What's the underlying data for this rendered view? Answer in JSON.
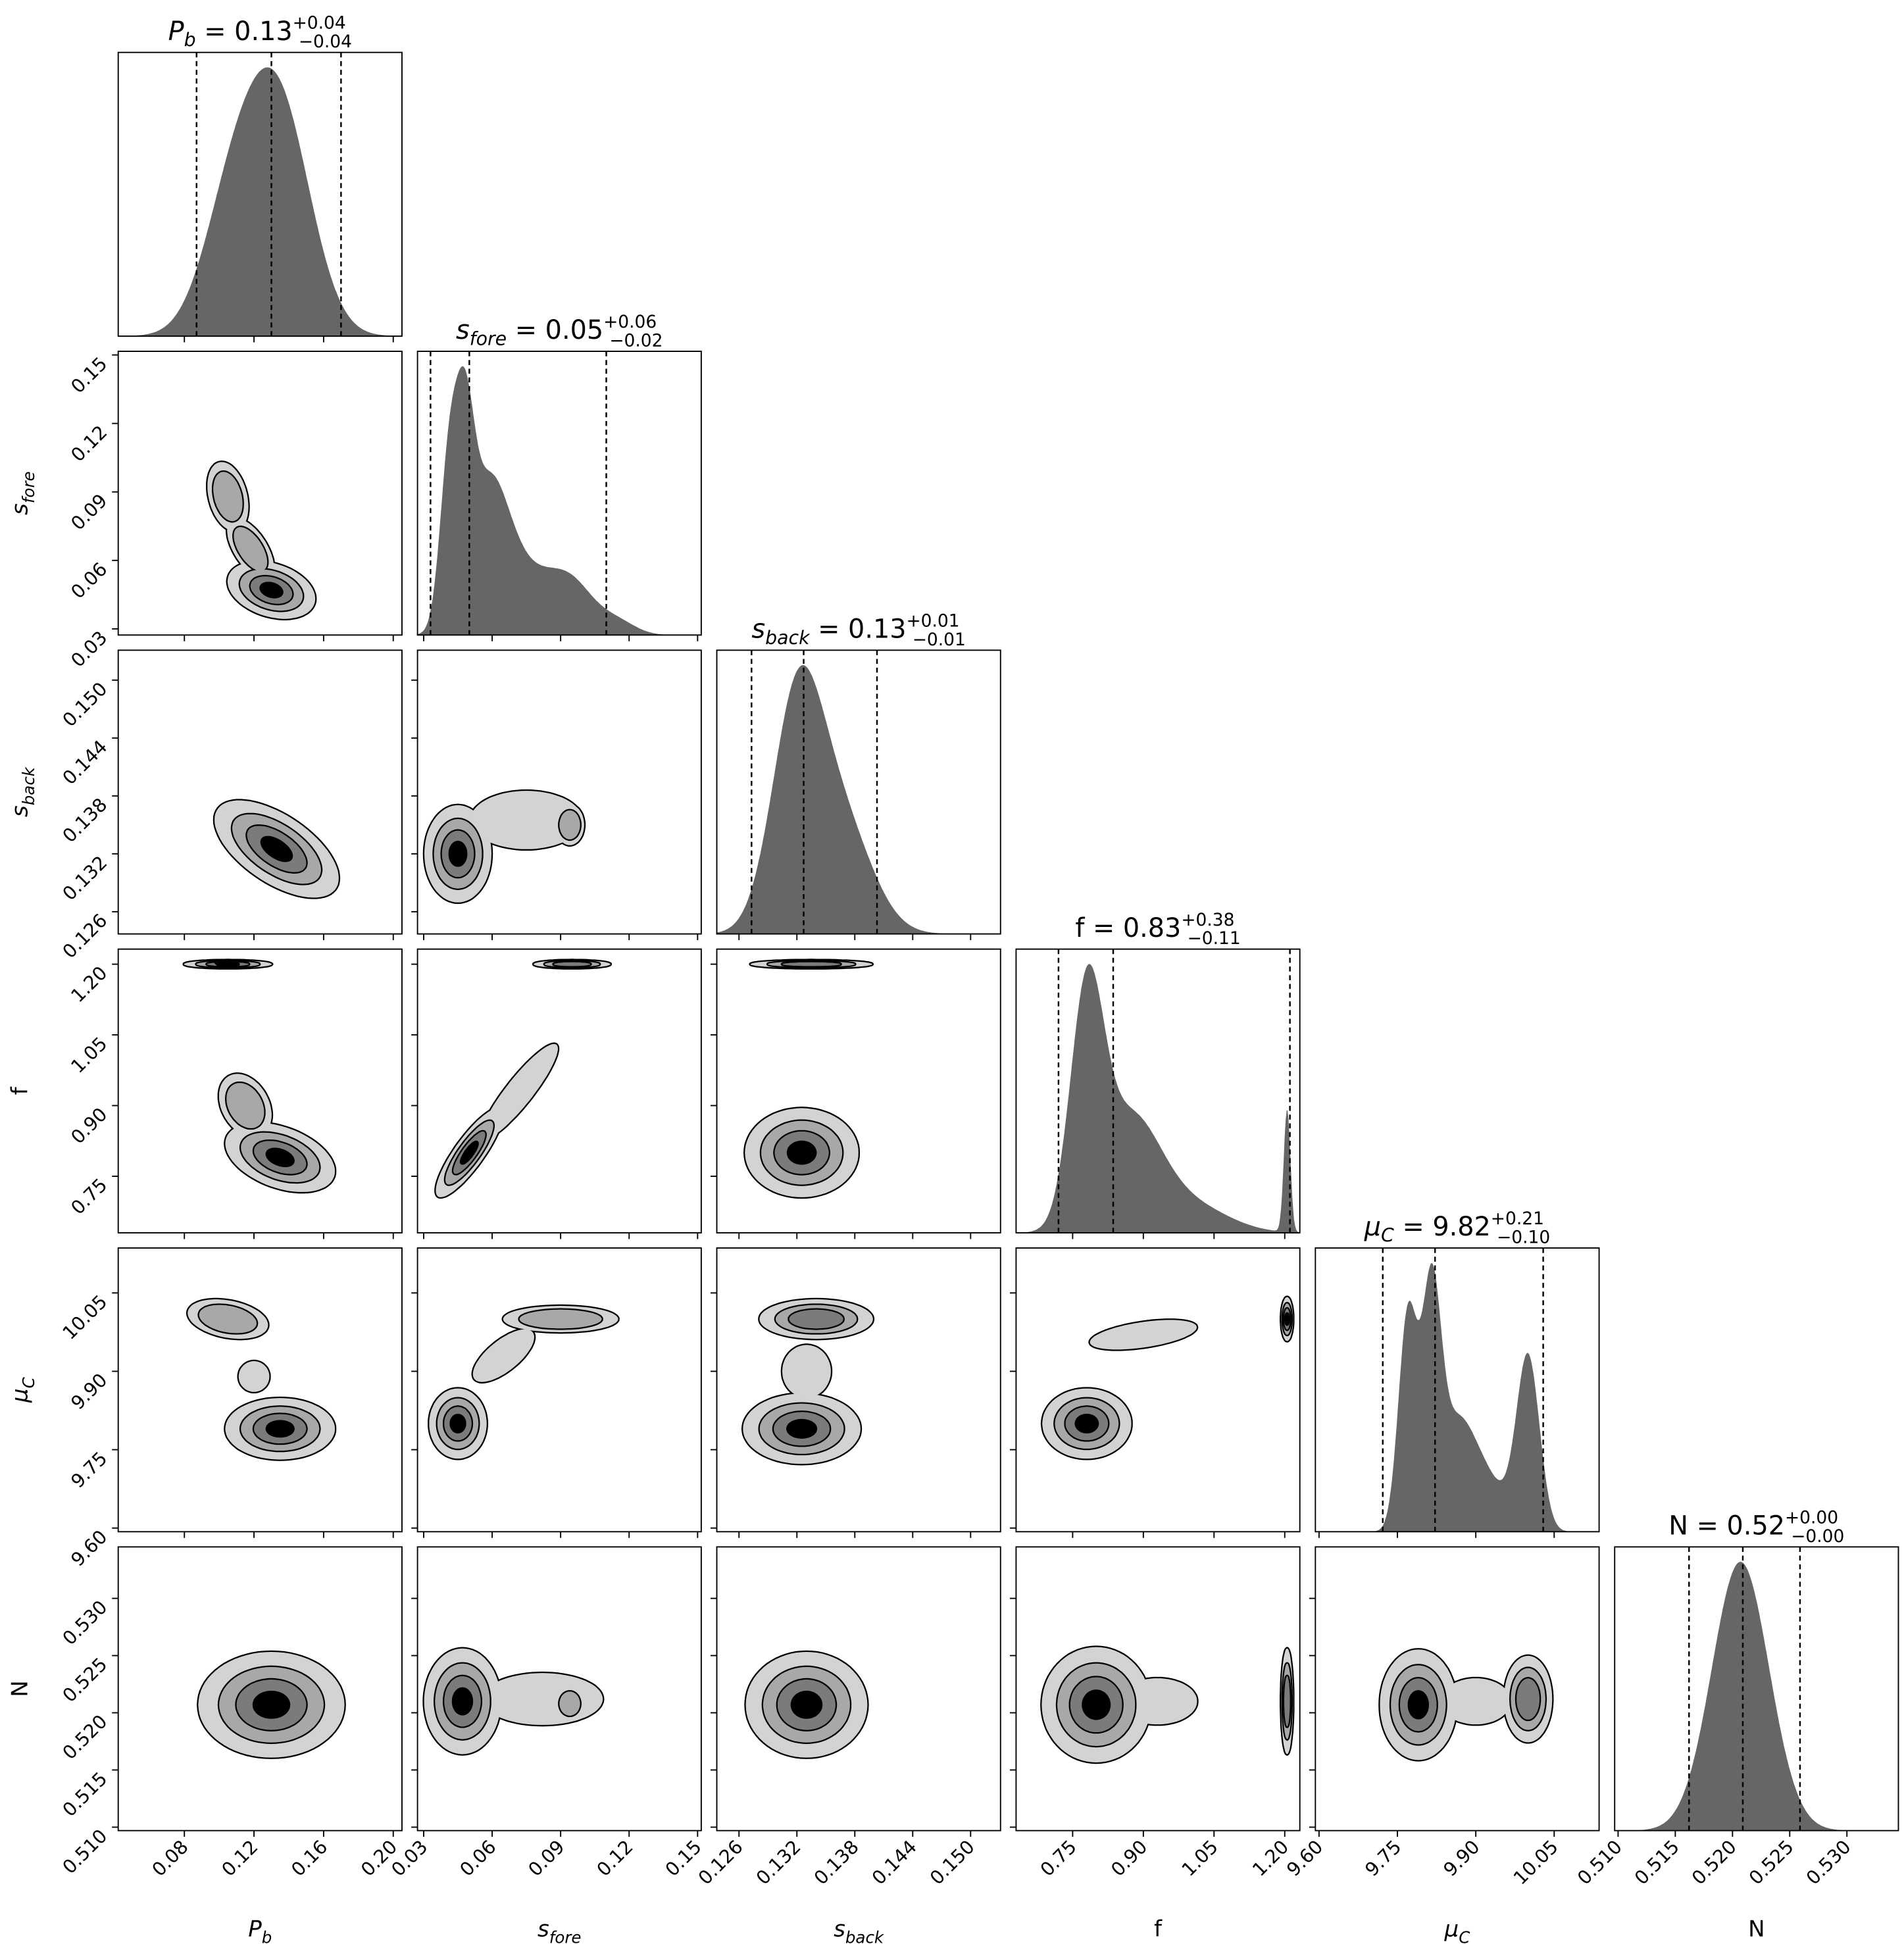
{
  "chart_data": {
    "type": "corner",
    "title": "",
    "parameters": [
      {
        "key": "Pb",
        "label": "P",
        "sub": "b",
        "range": [
          0.042,
          0.205
        ],
        "ticks": [
          "0.08",
          "0.12",
          "0.16",
          "0.20"
        ],
        "title": {
          "value": "0.13",
          "plus": "+0.04",
          "minus": "−0.04"
        },
        "quantiles": [
          0.087,
          0.13,
          0.17
        ],
        "marginal": [
          [
            0.135,
            0.018,
            1
          ],
          [
            0.108,
            0.017,
            0.6
          ]
        ]
      },
      {
        "key": "sfore",
        "label": "s",
        "sub": "fore",
        "range": [
          0.0273,
          0.1516
        ],
        "ticks": [
          "0.03",
          "0.06",
          "0.09",
          "0.12",
          "0.15"
        ],
        "title": {
          "value": "0.05",
          "plus": "+0.06",
          "minus": "−0.02"
        },
        "quantiles": [
          0.033,
          0.05,
          0.11
        ],
        "marginal": [
          [
            0.041,
            0.004,
            1
          ],
          [
            0.048,
            0.004,
            1
          ],
          [
            0.058,
            0.009,
            0.9
          ],
          [
            0.075,
            0.012,
            0.35
          ],
          [
            0.095,
            0.01,
            0.3
          ],
          [
            0.115,
            0.008,
            0.08
          ]
        ]
      },
      {
        "key": "sback",
        "label": "s",
        "sub": "back",
        "range": [
          0.1237,
          0.1531
        ],
        "ticks": [
          "0.126",
          "0.132",
          "0.138",
          "0.144",
          "0.150"
        ],
        "title": {
          "value": "0.13",
          "plus": "+0.01",
          "minus": "−0.01"
        },
        "quantiles": [
          0.1273,
          0.1327,
          0.1403
        ],
        "marginal": [
          [
            0.132,
            0.0026,
            1
          ],
          [
            0.1365,
            0.0032,
            0.5
          ]
        ]
      },
      {
        "key": "f",
        "label": "f",
        "sub": "",
        "range": [
          0.63,
          1.232
        ],
        "ticks": [
          "0.75",
          "0.90",
          "1.05",
          "1.20"
        ],
        "title": {
          "value": "0.83",
          "plus": "+0.38",
          "minus": "−0.11"
        },
        "quantiles": [
          0.72,
          0.836,
          1.211
        ],
        "marginal": [
          [
            0.78,
            0.035,
            1
          ],
          [
            0.87,
            0.065,
            0.5
          ],
          [
            1.0,
            0.08,
            0.12
          ],
          [
            1.205,
            0.007,
            0.55
          ]
        ]
      },
      {
        "key": "muC",
        "label": "μ",
        "sub": "C",
        "range": [
          9.593,
          10.136
        ],
        "ticks": [
          "9.60",
          "9.75",
          "9.90",
          "10.05"
        ],
        "title": {
          "value": "9.82",
          "plus": "+0.21",
          "minus": "−0.10"
        },
        "quantiles": [
          9.722,
          9.822,
          10.029
        ],
        "marginal": [
          [
            9.77,
            0.018,
            1
          ],
          [
            9.815,
            0.018,
            1
          ],
          [
            9.86,
            0.035,
            0.45
          ],
          [
            9.92,
            0.04,
            0.22
          ],
          [
            10.0,
            0.022,
            0.8
          ]
        ]
      },
      {
        "key": "N",
        "label": "N",
        "sub": "",
        "range": [
          0.5097,
          0.5345
        ],
        "ticks": [
          "0.510",
          "0.515",
          "0.520",
          "0.525",
          "0.530"
        ],
        "title": {
          "value": "0.52",
          "plus": "+0.00",
          "minus": "−0.00"
        },
        "quantiles": [
          0.5162,
          0.5209,
          0.5259
        ],
        "marginal": [
          [
            0.5207,
            0.0025,
            1
          ]
        ]
      }
    ],
    "tick_values": [
      [
        0.08,
        0.12,
        0.16,
        0.2
      ],
      [
        0.03,
        0.06,
        0.09,
        0.12,
        0.15
      ],
      [
        0.126,
        0.132,
        0.138,
        0.144,
        0.15
      ],
      [
        0.75,
        0.9,
        1.05,
        1.2
      ],
      [
        9.6,
        9.75,
        9.9,
        10.05
      ],
      [
        0.51,
        0.515,
        0.52,
        0.525,
        0.53
      ]
    ],
    "joint_blobs_note": "blob = [x_mean, y_mean, x_sd, y_sd, correlation, weight, contour_levels]",
    "joint": {
      "1-0": [
        [
          0.13,
          0.047,
          0.012,
          0.006,
          -0.3,
          1,
          4
        ],
        [
          0.118,
          0.065,
          0.008,
          0.008,
          -0.6,
          0.8,
          2
        ],
        [
          0.105,
          0.088,
          0.007,
          0.009,
          -0.3,
          0.8,
          2
        ]
      ],
      "2-0": [
        [
          0.133,
          0.1325,
          0.017,
          0.0024,
          -0.6,
          1,
          4
        ]
      ],
      "3-0": [
        [
          0.105,
          1.2,
          0.012,
          0.004,
          0,
          1,
          4
        ],
        [
          0.135,
          0.79,
          0.015,
          0.035,
          -0.4,
          1,
          4
        ],
        [
          0.115,
          0.9,
          0.009,
          0.04,
          -0.3,
          0.8,
          2
        ]
      ],
      "4-0": [
        [
          0.105,
          10.0,
          0.011,
          0.018,
          -0.3,
          1,
          2
        ],
        [
          0.135,
          9.79,
          0.015,
          0.028,
          0,
          1,
          4
        ],
        [
          0.12,
          9.89,
          0.006,
          0.02,
          0,
          0.7,
          1
        ]
      ],
      "5-0": [
        [
          0.13,
          0.5207,
          0.02,
          0.0022,
          0,
          1,
          4
        ]
      ],
      "2-1": [
        [
          0.045,
          0.132,
          0.007,
          0.0024,
          0,
          1,
          4
        ],
        [
          0.075,
          0.1355,
          0.013,
          0.0016,
          0,
          0.9,
          1
        ],
        [
          0.094,
          0.135,
          0.003,
          0.001,
          0,
          1,
          2
        ]
      ],
      "3-1": [
        [
          0.095,
          1.2,
          0.008,
          0.004,
          0,
          1,
          3
        ],
        [
          0.05,
          0.8,
          0.007,
          0.045,
          0.85,
          1,
          4
        ],
        [
          0.072,
          0.93,
          0.01,
          0.06,
          0.9,
          0.8,
          1
        ]
      ],
      "4-1": [
        [
          0.045,
          9.8,
          0.006,
          0.032,
          0,
          1,
          4
        ],
        [
          0.09,
          10.0,
          0.012,
          0.012,
          0,
          1,
          2
        ],
        [
          0.065,
          9.93,
          0.008,
          0.03,
          0.7,
          0.8,
          1
        ]
      ],
      "5-1": [
        [
          0.047,
          0.521,
          0.008,
          0.0022,
          0,
          1,
          4
        ],
        [
          0.082,
          0.5212,
          0.014,
          0.0012,
          0,
          0.9,
          1
        ],
        [
          0.094,
          0.5208,
          0.003,
          0.0007,
          0,
          1,
          2
        ]
      ],
      "3-2": [
        [
          0.1335,
          1.2,
          0.003,
          0.004,
          0,
          1,
          3
        ],
        [
          0.1325,
          0.8,
          0.0028,
          0.045,
          0,
          1,
          4
        ]
      ],
      "4-2": [
        [
          0.134,
          10.0,
          0.0028,
          0.018,
          0,
          1,
          3
        ],
        [
          0.1325,
          9.79,
          0.0029,
          0.032,
          0,
          1,
          4
        ],
        [
          0.133,
          9.9,
          0.0015,
          0.03,
          0,
          0.8,
          1
        ]
      ],
      "5-2": [
        [
          0.133,
          0.5207,
          0.003,
          0.0022,
          0,
          1,
          4
        ]
      ],
      "4-3": [
        [
          0.78,
          9.8,
          0.045,
          0.032,
          0,
          1,
          4
        ],
        [
          0.9,
          9.97,
          0.06,
          0.015,
          0.5,
          0.9,
          1
        ],
        [
          1.205,
          10.0,
          0.006,
          0.02,
          0,
          1,
          4
        ]
      ],
      "5-3": [
        [
          0.8,
          0.5207,
          0.055,
          0.0024,
          0,
          1,
          4
        ],
        [
          0.93,
          0.521,
          0.05,
          0.0012,
          0,
          0.8,
          1
        ],
        [
          1.205,
          0.521,
          0.006,
          0.0022,
          0,
          1,
          3
        ]
      ],
      "5-4": [
        [
          9.79,
          0.5207,
          0.035,
          0.0023,
          0,
          1,
          4
        ],
        [
          10.0,
          0.5212,
          0.022,
          0.0018,
          0,
          1,
          3
        ],
        [
          9.9,
          0.521,
          0.04,
          0.0012,
          0,
          0.8,
          1
        ]
      ]
    },
    "contour_colors": [
      "#d3d3d3",
      "#a8a8a8",
      "#7b7b7b",
      "#000000"
    ],
    "hist_color": "#666666",
    "grid": false,
    "legend": "none"
  }
}
